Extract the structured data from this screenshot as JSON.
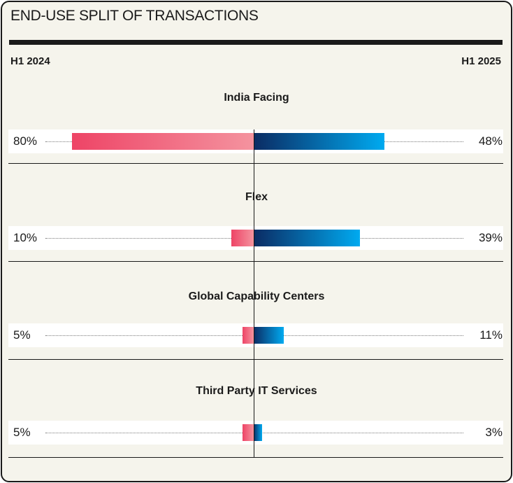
{
  "chart_data": {
    "type": "bar",
    "title": "END-USE SPLIT OF TRANSACTIONS",
    "left_period": "H1 2024",
    "right_period": "H1 2025",
    "categories": [
      "India Facing",
      "Flex",
      "Global Capability Centers",
      "Third Party IT Services"
    ],
    "series": [
      {
        "name": "H1 2024",
        "values": [
          80,
          10,
          5,
          5
        ],
        "labels": [
          "80%",
          "10%",
          "5%",
          "5%"
        ],
        "color_start": "#ee4466",
        "color_end": "#f4939f"
      },
      {
        "name": "H1 2025",
        "values": [
          48,
          39,
          11,
          3
        ],
        "labels": [
          "48%",
          "39%",
          "11%",
          "3%"
        ],
        "color_start": "#0b2b63",
        "color_end": "#00aaf0"
      }
    ],
    "unit": "%"
  }
}
